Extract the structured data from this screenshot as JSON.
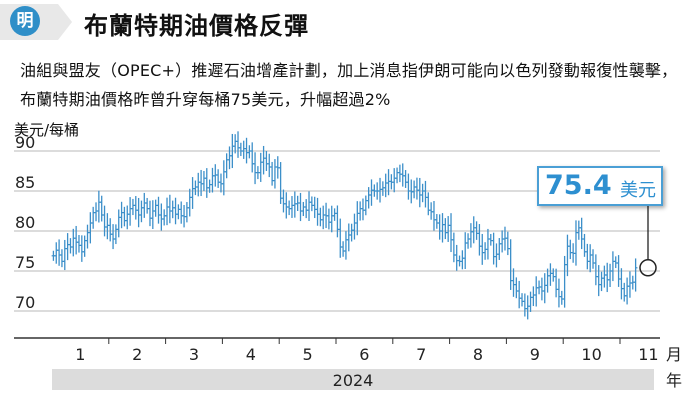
{
  "header": {
    "badge": "明",
    "title": "布蘭特期油價格反彈"
  },
  "description": "油組與盟友（OPEC+）推遲石油增產計劃，加上消息指伊朗可能向以色列發動報復性襲擊，布蘭特期油價格昨曾升穿每桶75美元，升幅超過2%",
  "callout": {
    "value": "75.4",
    "unit": "美元"
  },
  "colors": {
    "accent": "#2f8fc8",
    "candle": "#3c8fc9",
    "axis_band": "#dcdcdc",
    "grid": "#b8b8b8"
  },
  "chart_data": {
    "type": "candlestick-range",
    "title": "布蘭特期油價格反彈",
    "ylabel": "美元/每桶",
    "xlabel_unit": "月",
    "year_label": "2024",
    "year_unit": "年",
    "ylim": [
      67,
      93
    ],
    "yticks": [
      "70",
      "75",
      "80",
      "85",
      "90"
    ],
    "xticks": [
      "1",
      "2",
      "3",
      "4",
      "5",
      "6",
      "7",
      "8",
      "9",
      "10",
      "11"
    ],
    "grid": true,
    "months": [
      {
        "month": "1",
        "values": [
          76.9,
          77.6,
          77.0,
          76.2,
          77.8,
          78.3,
          78.0,
          79.1,
          78.6,
          78.2,
          77.4,
          78.8,
          79.8,
          81.0,
          82.3,
          82.5,
          83.6,
          82.0,
          80.5,
          80.7
        ]
      },
      {
        "month": "2",
        "values": [
          79.6,
          79.0,
          80.2,
          81.7,
          82.3,
          81.3,
          82.1,
          82.8,
          83.2,
          82.6,
          82.0,
          82.9,
          83.5,
          82.8,
          81.6,
          82.5,
          83.2,
          82.0,
          81.5,
          81.9
        ]
      },
      {
        "month": "3",
        "values": [
          83.0,
          82.5,
          82.9,
          82.1,
          82.7,
          81.9,
          81.8,
          82.9,
          84.2,
          85.3,
          85.5,
          86.1,
          85.9,
          86.6,
          85.4,
          85.8,
          86.9,
          87.0,
          86.1,
          85.9
        ]
      },
      {
        "month": "4",
        "values": [
          87.4,
          88.9,
          89.4,
          90.6,
          91.2,
          90.4,
          90.0,
          90.3,
          89.8,
          90.0,
          88.4,
          87.3,
          87.3,
          88.6,
          89.1,
          88.4,
          88.0,
          86.3,
          88.0,
          87.9
        ]
      },
      {
        "month": "5",
        "values": [
          84.1,
          83.4,
          83.0,
          82.8,
          83.2,
          83.4,
          83.5,
          82.5,
          83.0,
          82.6,
          83.6,
          83.2,
          82.7,
          82.1,
          81.4,
          82.0,
          81.9,
          81.1,
          81.9,
          82.2
        ]
      },
      {
        "month": "6",
        "values": [
          80.2,
          78.0,
          77.5,
          78.9,
          79.5,
          80.1,
          81.0,
          82.2,
          82.8,
          82.6,
          83.8,
          84.5,
          85.1,
          85.0,
          85.0,
          85.2,
          85.4,
          86.0,
          86.2,
          86.1
        ]
      },
      {
        "month": "7",
        "values": [
          86.6,
          87.3,
          87.1,
          86.9,
          86.1,
          85.0,
          84.9,
          85.5,
          85.1,
          84.5,
          85.0,
          84.2,
          82.6,
          82.4,
          81.4,
          81.0,
          80.0,
          80.8,
          79.8,
          80.7
        ]
      },
      {
        "month": "8",
        "values": [
          78.9,
          77.0,
          76.3,
          76.2,
          76.6,
          78.5,
          79.0,
          79.9,
          80.4,
          79.7,
          78.1,
          77.3,
          77.7,
          79.0,
          78.8,
          76.8,
          77.1,
          78.4,
          79.0,
          79.1
        ]
      },
      {
        "month": "9",
        "values": [
          77.8,
          73.8,
          73.3,
          72.5,
          71.6,
          71.2,
          70.3,
          70.6,
          71.7,
          72.0,
          72.9,
          73.0,
          72.5,
          73.2,
          74.4,
          74.7,
          74.3,
          72.7,
          71.8,
          71.5
        ]
      },
      {
        "month": "10",
        "values": [
          75.8,
          78.1,
          77.3,
          77.2,
          79.8,
          80.4,
          79.0,
          77.4,
          76.2,
          77.0,
          76.0,
          74.3,
          73.3,
          74.1,
          74.5,
          73.9,
          75.0,
          76.2,
          76.0,
          74.0
        ]
      },
      {
        "month": "11",
        "values": [
          72.8,
          71.9,
          73.1,
          73.5,
          73.6,
          75.4
        ]
      }
    ],
    "annotation": {
      "label": "75.4美元",
      "value": 75.4
    }
  }
}
